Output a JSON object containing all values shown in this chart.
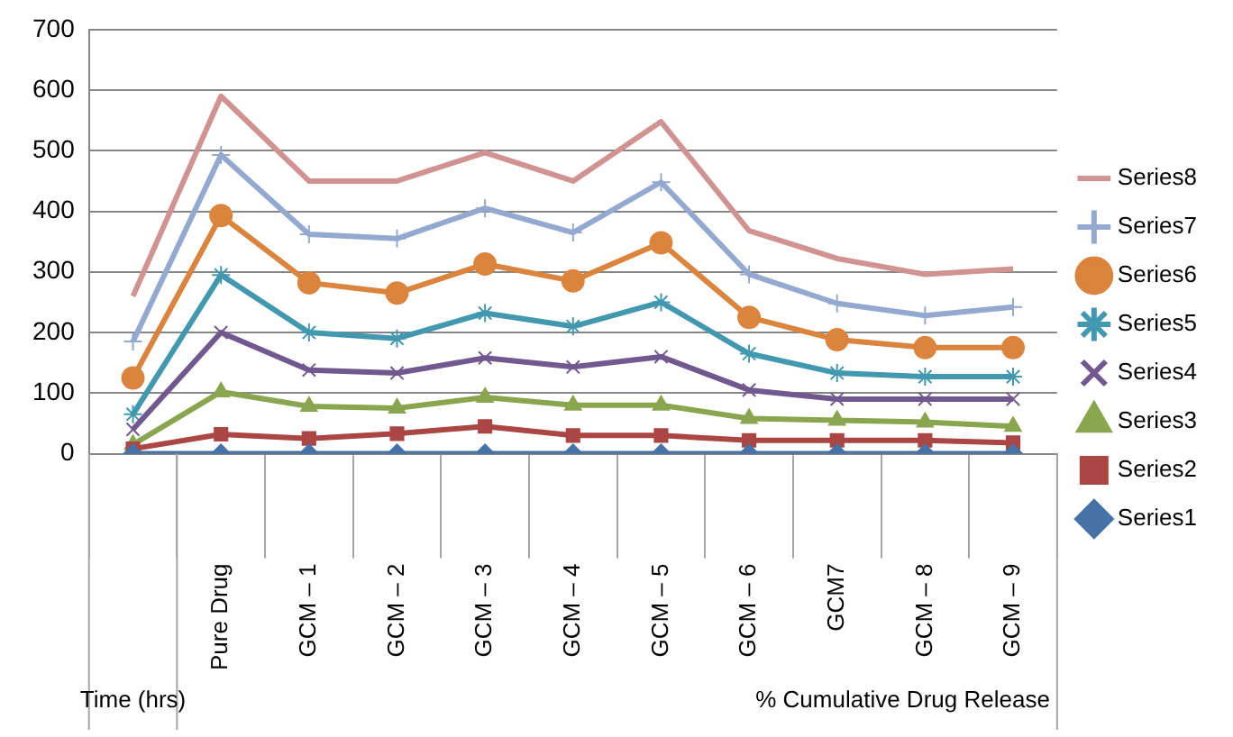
{
  "chart_data": {
    "type": "line",
    "categories": [
      null,
      "Pure Drug",
      "GCM – 1",
      "GCM – 2",
      "GCM – 3",
      "GCM – 4",
      "GCM – 5",
      "GCM – 6",
      "GCM7",
      "GCM – 8",
      "GCM – 9"
    ],
    "annotations": [
      "Time (hrs)",
      "% Cumulative Drug Release"
    ],
    "series": [
      {
        "name": "Series1",
        "color": "#4572a7",
        "marker": "diamond",
        "values": [
          0,
          0,
          0,
          0,
          0,
          0,
          0,
          0,
          0,
          0,
          0
        ]
      },
      {
        "name": "Series2",
        "color": "#aa4643",
        "marker": "square",
        "values": [
          8,
          32,
          25,
          33,
          45,
          30,
          30,
          22,
          22,
          22,
          18
        ]
      },
      {
        "name": "Series3",
        "color": "#89a54e",
        "marker": "triangle",
        "values": [
          15,
          102,
          78,
          75,
          93,
          80,
          80,
          58,
          55,
          52,
          45
        ]
      },
      {
        "name": "Series4",
        "color": "#71588f",
        "marker": "cross",
        "values": [
          40,
          200,
          138,
          133,
          158,
          143,
          160,
          105,
          90,
          90,
          90
        ]
      },
      {
        "name": "Series5",
        "color": "#4198af",
        "marker": "cross",
        "values": [
          65,
          295,
          200,
          190,
          232,
          210,
          250,
          165,
          133,
          127,
          127
        ]
      },
      {
        "name": "Series6",
        "color": "#db843d",
        "marker": "circle",
        "values": [
          125,
          393,
          282,
          265,
          313,
          285,
          348,
          225,
          188,
          175,
          175
        ]
      },
      {
        "name": "Series7",
        "color": "#93a9cf",
        "marker": "cross",
        "values": [
          185,
          493,
          362,
          355,
          405,
          365,
          448,
          296,
          248,
          228,
          242
        ]
      },
      {
        "name": "Series8",
        "color": "#d19392",
        "marker": "none",
        "values": [
          260,
          590,
          450,
          450,
          497,
          450,
          548,
          368,
          322,
          296,
          305
        ]
      }
    ],
    "ylim": [
      0,
      700
    ],
    "yticks": [
      0,
      100,
      200,
      300,
      400,
      500,
      600,
      700
    ],
    "grid": "y",
    "legend": "right"
  }
}
